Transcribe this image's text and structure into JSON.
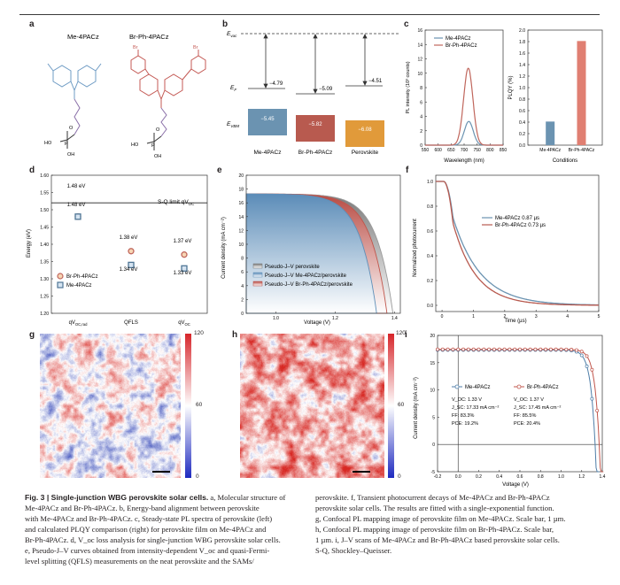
{
  "panel_labels": [
    "a",
    "b",
    "c",
    "d",
    "e",
    "f",
    "g",
    "h",
    "i"
  ],
  "a": {
    "mol1": "Me-4PACz",
    "mol2": "Br-Ph-4PACz",
    "ho": "HO",
    "oh": "OH",
    "p": "P",
    "o": "O",
    "br": "Br"
  },
  "b": {
    "evac": "E",
    "evac_sub": "vac",
    "ef": "E",
    "ef_sub": "F",
    "evbm": "E",
    "evbm_sub": "VBM",
    "wf": [
      "−4.79",
      "−5.09",
      "−4.51"
    ],
    "vbm": [
      "−5.45",
      "−5.82",
      "−6.08"
    ],
    "names": [
      "Me-4PACz",
      "Br-Ph-4PACz",
      "Perovskite"
    ],
    "colors": [
      "#6b93b1",
      "#b85a4f",
      "#e19a3a"
    ]
  },
  "c": {
    "legend": [
      "Me-4PACz",
      "Br-Ph-4PACz"
    ],
    "xlabel": "Wavelength (nm)",
    "ylabel_left": "PL intensity (10³ counts)",
    "ylabel_right": "PLQY (%)",
    "xlabel_right": "Conditions",
    "cats": [
      "Me-4PACz",
      "Br-Ph-4PACz"
    ]
  },
  "d": {
    "sq": "S-Q limit qV",
    "sq_sub": "OC",
    "ylabel": "Energy (eV)",
    "xcats": [
      "qV",
      "QFLS",
      "qV"
    ],
    "xsub": [
      "OC,rad",
      "",
      "OC"
    ],
    "legend": [
      "Br-Ph-4PACz",
      "Me-4PACz"
    ],
    "vals": {
      "br": [
        "1.48 eV",
        "1.38 eV",
        "1.37 eV"
      ],
      "me": [
        "1.48 eV",
        "1.34 eV",
        "1.33 eV"
      ]
    }
  },
  "e": {
    "ylabel": "Current density (mA cm⁻²)",
    "xlabel": "Voltage (V)",
    "legend": [
      "Pseudo-J–V perovskite",
      "Pseudo-J–V Me-4PACz/perovskite",
      "Pseudo-J–V Br-Ph-4PACz/perovskite"
    ]
  },
  "f": {
    "legend": [
      "Me-4PACz 0.87 µs",
      "Br-Ph-4PACz 0.73 µs"
    ],
    "ylabel": "Normalized photocurrent",
    "xlabel": "Time (µs)"
  },
  "gh": {
    "cbar_ticks": [
      "120",
      "60",
      "0"
    ]
  },
  "i": {
    "legend": [
      "Me-4PACz",
      "Br-Ph-4PACz"
    ],
    "ylabel": "Current density (mA cm⁻²)",
    "xlabel": "Voltage (V)",
    "me_stats": [
      "V_OC: 1.33 V",
      "J_SC: 17.33 mA cm⁻²",
      "FF: 83.3%",
      "PCE: 19.2%"
    ],
    "br_stats": [
      "V_OC: 1.37 V",
      "J_SC: 17.45 mA cm⁻²",
      "FF: 85.5%",
      "PCE: 20.4%"
    ]
  },
  "caption": {
    "left": [
      {
        "b": "Fig. 3 | Single-junction WBG perovskite solar cells.",
        "t": " a, Molecular structure of"
      },
      {
        "b": "",
        "t": "Me-4PACz and Br-Ph-4PACz. b, Energy-band alignment between perovskite"
      },
      {
        "b": "",
        "t": "with Me-4PACz and Br-Ph-4PACz. c, Steady-state PL spectra of perovskite (left)"
      },
      {
        "b": "",
        "t": "and calculated PLQY comparison (right) for perovskite film on Me-4PACz and"
      },
      {
        "b": "",
        "t": "Br-Ph-4PACz. d, V_oc loss analysis for single-junction WBG perovskite solar cells."
      },
      {
        "b": "",
        "t": "e, Pseudo-J–V curves obtained from intensity-dependent V_oc and quasi-Fermi-"
      },
      {
        "b": "",
        "t": "level splitting (QFLS) measurements on the neat perovskite and the SAMs/"
      }
    ],
    "right": [
      "perovskite. f, Transient photocurrent decays of Me-4PACz and Br-Ph-4PACz",
      "perovskite solar cells. The results are fitted with a single-exponential function.",
      "g, Confocal PL mapping image of perovskite film on Me-4PACz. Scale bar, 1 µm.",
      "h, Confocal PL mapping image of perovskite film on Br-Ph-4PACz. Scale bar,",
      "1 µm. i, J–V scans of Me-4PACz and Br-Ph-4PACz based perovskite solar cells.",
      "S-Q, Shockley–Queisser."
    ]
  },
  "chart_data": [
    {
      "panel": "c-left",
      "type": "line",
      "xlabel": "Wavelength (nm)",
      "ylabel": "PL intensity (10³ counts)",
      "xlim": [
        550,
        850
      ],
      "ylim": [
        0,
        16
      ],
      "xticks": [
        550,
        600,
        650,
        700,
        750,
        800,
        850
      ],
      "yticks": [
        0,
        2,
        4,
        6,
        8,
        10,
        12,
        14,
        16
      ],
      "series": [
        {
          "name": "Me-4PACz",
          "color": "#6b93b1",
          "peak_x": 718,
          "peak_y": 3.3,
          "fwhm": 40
        },
        {
          "name": "Br-Ph-4PACz",
          "color": "#c0665c",
          "peak_x": 716,
          "peak_y": 10.7,
          "fwhm": 42
        }
      ]
    },
    {
      "panel": "c-right",
      "type": "bar",
      "xlabel": "Conditions",
      "ylabel": "PLQY (%)",
      "ylim": [
        0,
        2.0
      ],
      "yticks": [
        0,
        0.2,
        0.4,
        0.6,
        0.8,
        1.0,
        1.2,
        1.4,
        1.6,
        1.8,
        2.0
      ],
      "categories": [
        "Me-4PACz",
        "Br-Ph-4PACz"
      ],
      "values": [
        0.41,
        1.81
      ],
      "colors": [
        "#6b93b1",
        "#e07f72"
      ]
    },
    {
      "panel": "d",
      "type": "scatter",
      "ylabel": "Energy (eV)",
      "ylim": [
        1.2,
        1.6
      ],
      "yticks": [
        1.2,
        1.25,
        1.3,
        1.35,
        1.4,
        1.45,
        1.5,
        1.55,
        1.6
      ],
      "sq_limit": 1.52,
      "series": [
        {
          "name": "Br-Ph-4PACz",
          "values": [
            1.48,
            1.38,
            1.37
          ],
          "color": "#c0665c"
        },
        {
          "name": "Me-4PACz",
          "values": [
            1.48,
            1.34,
            1.33
          ],
          "color": "#4f7595"
        }
      ]
    },
    {
      "panel": "e",
      "type": "area",
      "xlabel": "Voltage (V)",
      "ylabel": "Current density (mA cm⁻²)",
      "xlim": [
        0.9,
        1.42
      ],
      "ylim": [
        0,
        20
      ],
      "xticks": [
        1.0,
        1.2,
        1.4
      ],
      "yticks": [
        0,
        2,
        4,
        6,
        8,
        10,
        12,
        14,
        16,
        18,
        20
      ],
      "series": [
        {
          "name": "Pseudo-J–V perovskite",
          "jsc": 17.3,
          "voc": 1.395,
          "color": "#9a9a9a"
        },
        {
          "name": "Pseudo-J–V Me-4PACz/perovskite",
          "jsc": 17.3,
          "voc": 1.34,
          "color": "#5f8fb8"
        },
        {
          "name": "Pseudo-J–V Br-Ph-4PACz/perovskite",
          "jsc": 17.3,
          "voc": 1.375,
          "color": "#c0564c"
        }
      ]
    },
    {
      "panel": "f",
      "type": "line",
      "xlabel": "Time (µs)",
      "ylabel": "Normalized photocurrent",
      "xlim": [
        -0.2,
        5
      ],
      "ylim": [
        -0.05,
        1.05
      ],
      "xticks": [
        0,
        1,
        2,
        3,
        4,
        5
      ],
      "yticks": [
        0,
        0.2,
        0.4,
        0.6,
        0.8,
        1.0
      ],
      "series": [
        {
          "name": "Me-4PACz",
          "tau": 0.87,
          "color": "#6b93b1"
        },
        {
          "name": "Br-Ph-4PACz",
          "tau": 0.73,
          "color": "#b85a4f"
        }
      ]
    },
    {
      "panel": "i",
      "type": "line",
      "xlabel": "Voltage (V)",
      "ylabel": "Current density (mA cm⁻²)",
      "xlim": [
        -0.2,
        1.4
      ],
      "ylim": [
        -5,
        20
      ],
      "xticks": [
        -0.2,
        0,
        0.2,
        0.4,
        0.6,
        0.8,
        1.0,
        1.2,
        1.4
      ],
      "yticks": [
        -5,
        0,
        5,
        10,
        15,
        20
      ],
      "series": [
        {
          "name": "Me-4PACz",
          "voc": 1.33,
          "jsc": 17.33,
          "ff": 83.3,
          "pce": 19.2,
          "color": "#4f7ea8"
        },
        {
          "name": "Br-Ph-4PACz",
          "voc": 1.37,
          "jsc": 17.45,
          "ff": 85.5,
          "pce": 20.4,
          "color": "#c0564c"
        }
      ]
    }
  ]
}
